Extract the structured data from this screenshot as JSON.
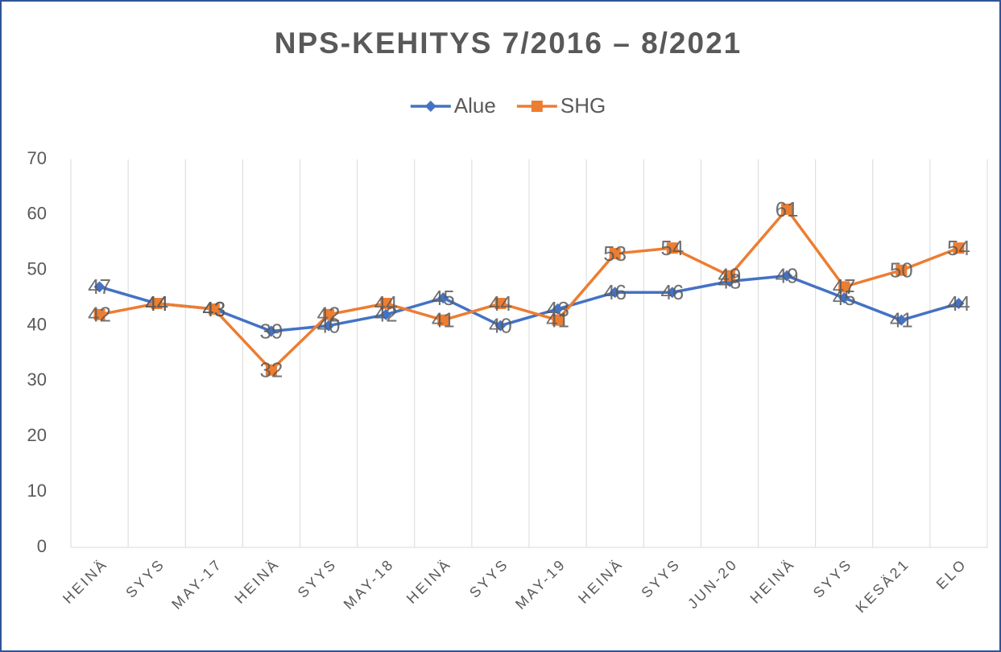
{
  "chart_data": {
    "type": "line",
    "title": "NPS-KEHITYS 7/2016 – 8/2021",
    "categories": [
      "HEINÄ",
      "SYYS",
      "MAY-17",
      "HEINÄ",
      "SYYS",
      "MAY-18",
      "HEINÄ",
      "SYYS",
      "MAY-19",
      "HEINÄ",
      "SYYS",
      "JUN-20",
      "HEINÄ",
      "SYYS",
      "KESÄ21",
      "ELO"
    ],
    "series": [
      {
        "name": "Alue",
        "color": "#4472c4",
        "marker": "diamond",
        "values": [
          47,
          44,
          43,
          39,
          40,
          42,
          45,
          40,
          43,
          46,
          46,
          48,
          49,
          45,
          41,
          44
        ]
      },
      {
        "name": "SHG",
        "color": "#ed7d31",
        "marker": "square",
        "values": [
          42,
          44,
          43,
          32,
          42,
          44,
          41,
          44,
          41,
          53,
          54,
          49,
          61,
          47,
          50,
          54
        ]
      }
    ],
    "ylim": [
      0,
      70
    ],
    "yticks": [
      0,
      10,
      20,
      30,
      40,
      50,
      60,
      70
    ],
    "grid": "x",
    "legend": "top"
  }
}
